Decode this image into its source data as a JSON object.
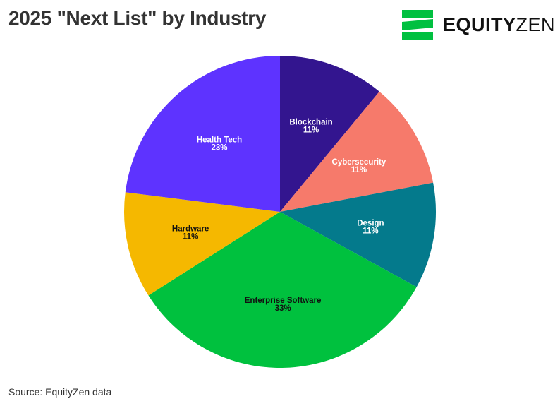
{
  "header": {
    "title": "2025 \"Next List\" by Industry"
  },
  "logo": {
    "text_bold": "EQUITY",
    "text_light": "ZEN",
    "brand_color": "#00c040"
  },
  "chart_data": {
    "type": "pie",
    "title": "2025 \"Next List\" by Industry",
    "start_angle_deg": 0,
    "direction": "clockwise",
    "slices": [
      {
        "name": "Blockchain",
        "value": 11,
        "label": "11%",
        "color": "#33158f",
        "text_color": "#ffffff"
      },
      {
        "name": "Cybersecurity",
        "value": 11,
        "label": "11%",
        "color": "#f67a6b",
        "text_color": "#ffffff"
      },
      {
        "name": "Design",
        "value": 11,
        "label": "11%",
        "color": "#047a8c",
        "text_color": "#ffffff"
      },
      {
        "name": "Enterprise Software",
        "value": 33,
        "label": "33%",
        "color": "#00c13e",
        "text_color": "#111111"
      },
      {
        "name": "Hardware",
        "value": 11,
        "label": "11%",
        "color": "#f5b800",
        "text_color": "#111111"
      },
      {
        "name": "Health Tech",
        "value": 23,
        "label": "23%",
        "color": "#5e33ff",
        "text_color": "#ffffff"
      }
    ]
  },
  "footer": {
    "source": "Source: EquityZen data"
  }
}
